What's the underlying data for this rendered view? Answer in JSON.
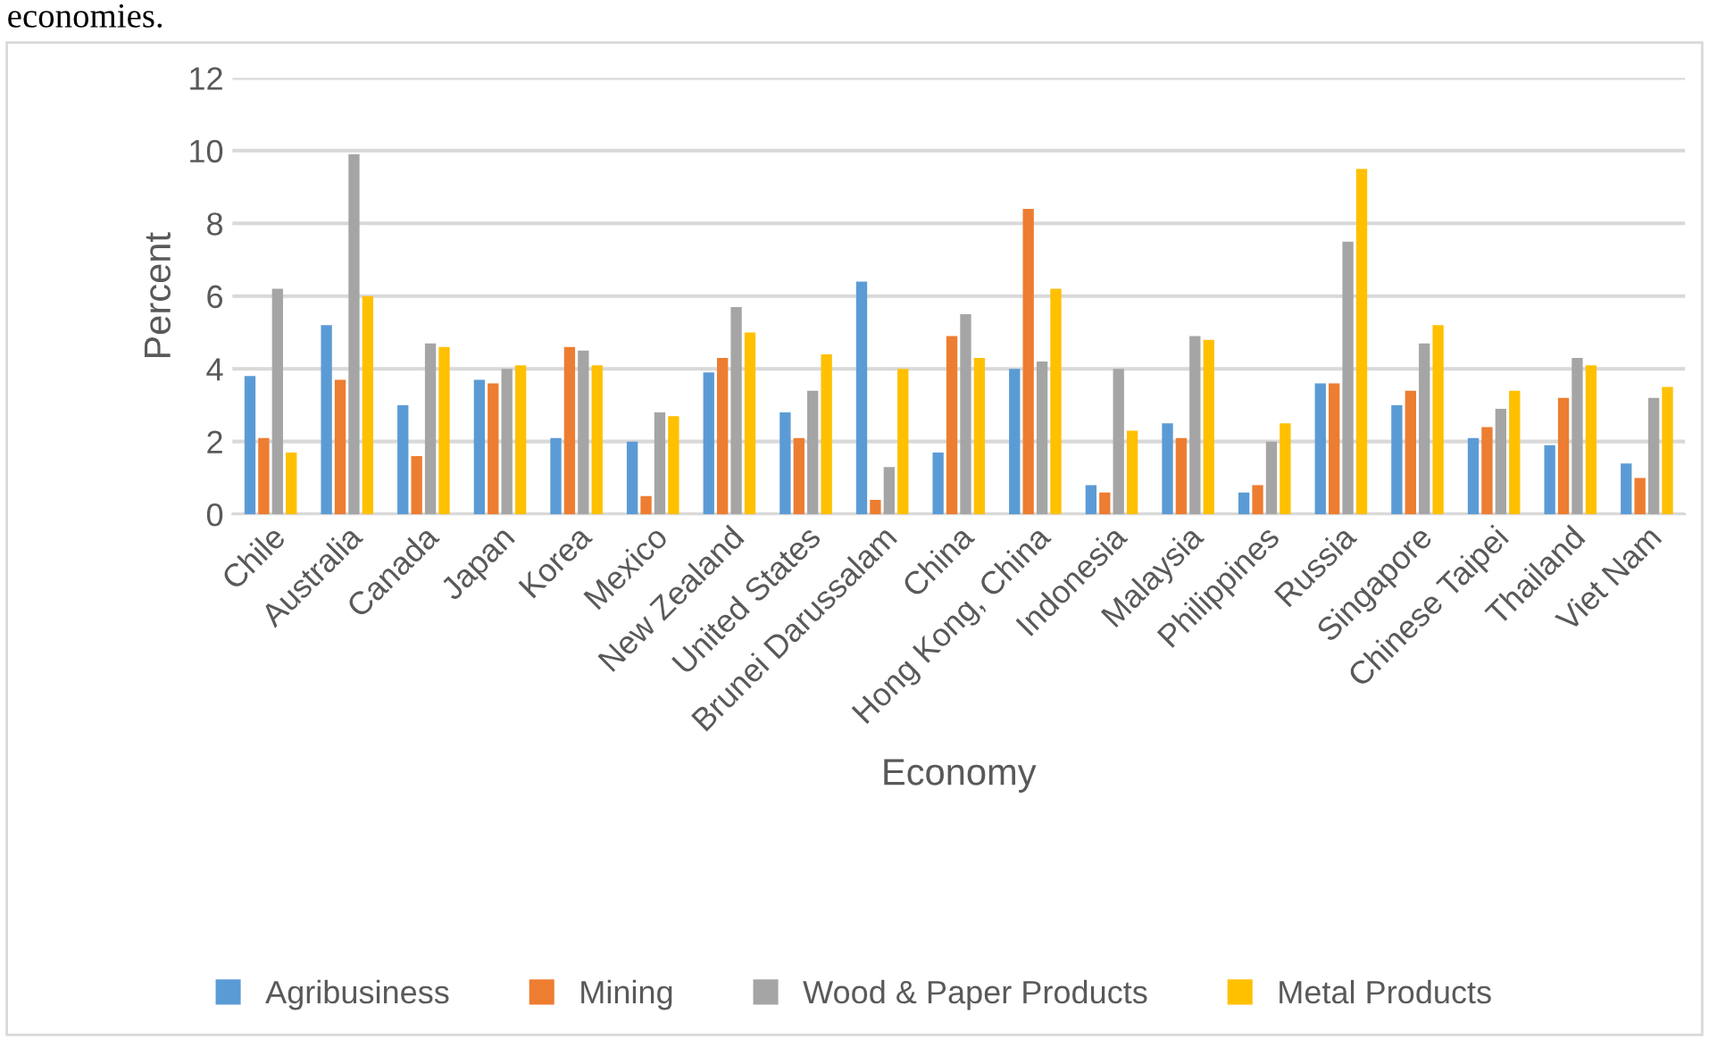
{
  "chart_data": {
    "type": "bar",
    "xlabel": "Economy",
    "ylabel": "Percent",
    "annotations": [
      "economies."
    ],
    "categories": [
      "Chile",
      "Australia",
      "Canada",
      "Japan",
      "Korea",
      "Mexico",
      "New Zealand",
      "United States",
      "Brunei Darussalam",
      "China",
      "Hong Kong, China",
      "Indonesia",
      "Malaysia",
      "Philippines",
      "Russia",
      "Singapore",
      "Chinese Taipei",
      "Thailand",
      "Viet Nam"
    ],
    "series": [
      {
        "name": "Agribusiness",
        "color": "#5b9bd5",
        "values": [
          3.8,
          5.2,
          3.0,
          3.7,
          2.1,
          2.0,
          3.9,
          2.8,
          6.4,
          1.7,
          4.0,
          0.8,
          2.5,
          0.6,
          3.6,
          3.0,
          2.1,
          1.9,
          1.4
        ]
      },
      {
        "name": "Mining",
        "color": "#ed7d31",
        "values": [
          2.1,
          3.7,
          1.6,
          3.6,
          4.6,
          0.5,
          4.3,
          2.1,
          0.4,
          4.9,
          8.4,
          0.6,
          2.1,
          0.8,
          3.6,
          3.4,
          2.4,
          3.2,
          1.0
        ]
      },
      {
        "name": "Wood & Paper Products",
        "color": "#a5a5a5",
        "values": [
          6.2,
          9.9,
          4.7,
          4.0,
          4.5,
          2.8,
          5.7,
          3.4,
          1.3,
          5.5,
          4.2,
          4.0,
          4.9,
          2.0,
          7.5,
          4.7,
          2.9,
          4.3,
          3.2
        ]
      },
      {
        "name": "Metal Products",
        "color": "#ffc000",
        "values": [
          1.7,
          6.0,
          4.6,
          4.1,
          4.1,
          2.7,
          5.0,
          4.4,
          4.0,
          4.3,
          6.2,
          2.3,
          4.8,
          2.5,
          9.5,
          5.2,
          3.4,
          4.1,
          3.5
        ]
      }
    ],
    "ylim": [
      0,
      12
    ],
    "yticks": [
      0,
      2,
      4,
      6,
      8,
      10,
      12
    ],
    "grid": "y",
    "legend": "bottom"
  }
}
